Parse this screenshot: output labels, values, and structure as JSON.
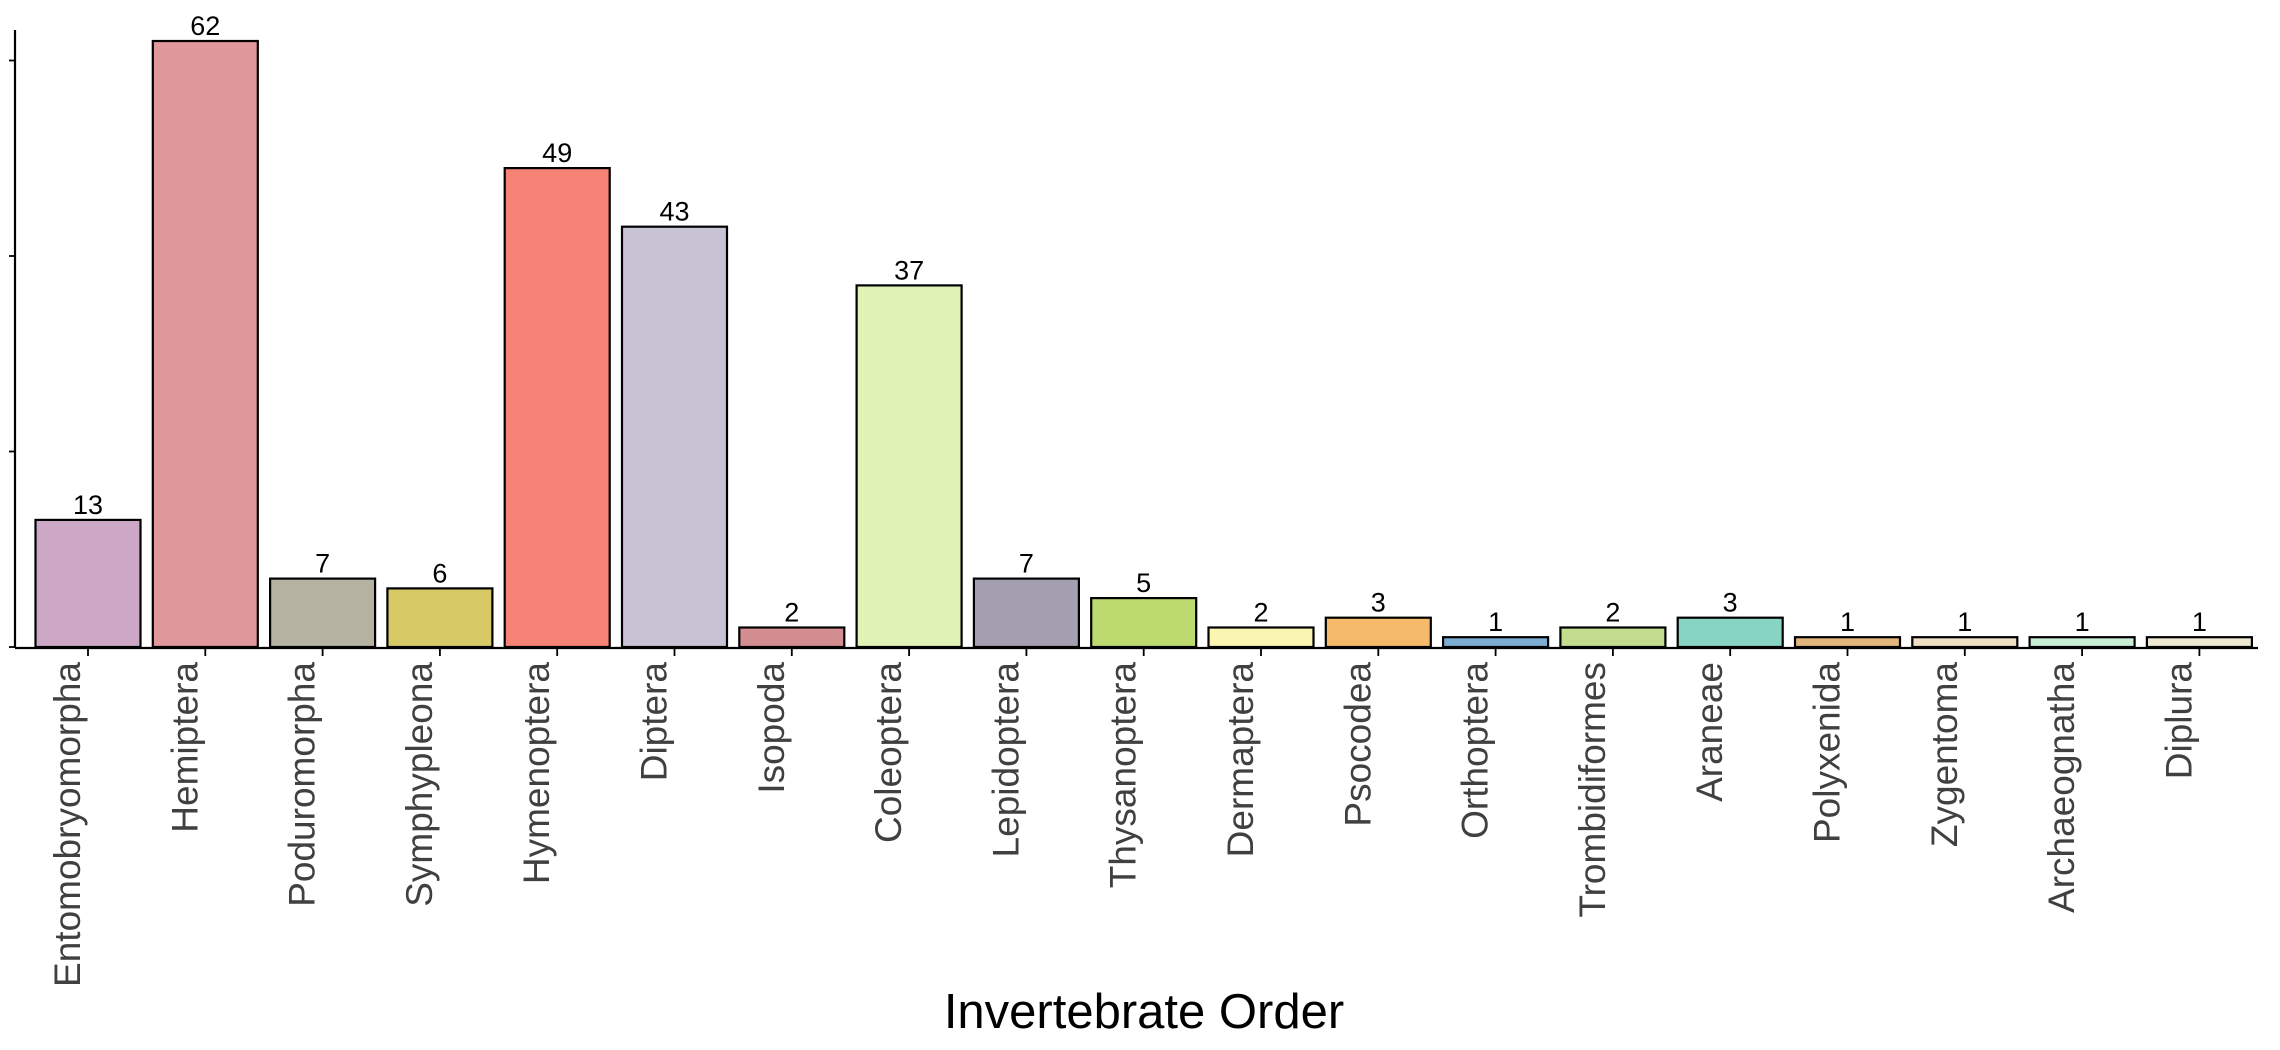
{
  "chart_data": {
    "type": "bar",
    "categories": [
      "Entomobryomorpha",
      "Hemiptera",
      "Poduromorpha",
      "Symphypleona",
      "Hymenoptera",
      "Diptera",
      "Isopoda",
      "Coleoptera",
      "Lepidoptera",
      "Thysanoptera",
      "Dermaptera",
      "Psocodea",
      "Orthoptera",
      "Trombidiformes",
      "Araneae",
      "Polyxenida",
      "Zygentoma",
      "Archaeognatha",
      "Diplura"
    ],
    "values": [
      13,
      62,
      7,
      6,
      49,
      43,
      2,
      37,
      7,
      5,
      2,
      3,
      1,
      2,
      3,
      1,
      1,
      1,
      1
    ],
    "colors": [
      "#cda8c6",
      "#e1989c",
      "#b5b2a2",
      "#d7c966",
      "#f68375",
      "#c8c3d4",
      "#d48e92",
      "#e0f2b5",
      "#a5a0b1",
      "#bcda6d",
      "#faf5b0",
      "#f5bb6b",
      "#7eadd4",
      "#c3dc8d",
      "#87d3c4",
      "#e2b67d",
      "#eedfc4",
      "#c8eed3",
      "#ede8d1"
    ],
    "xlabel": "Invertebrate Order",
    "ylabel": "",
    "ylim": [
      0,
      64
    ],
    "yticks": [
      0,
      20,
      40,
      60
    ],
    "grid": false,
    "legend": "none"
  }
}
